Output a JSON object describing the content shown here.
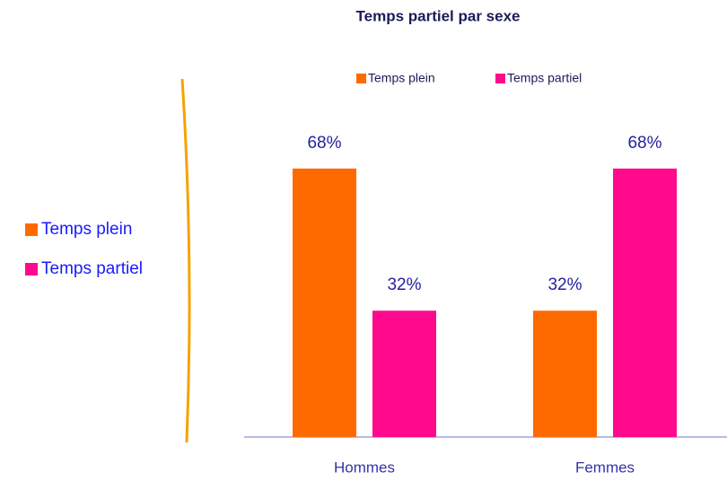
{
  "chart_data": {
    "type": "bar",
    "title": "Temps partiel par sexe",
    "categories": [
      "Hommes",
      "Femmes"
    ],
    "series": [
      {
        "name": "Temps plein",
        "color": "#ff6a00",
        "values": [
          68,
          32
        ],
        "value_labels": [
          "68%",
          "32%"
        ]
      },
      {
        "name": "Temps partiel",
        "color": "#ff0a8c",
        "values": [
          32,
          68
        ],
        "value_labels": [
          "32%",
          "68%"
        ]
      }
    ]
  }
}
